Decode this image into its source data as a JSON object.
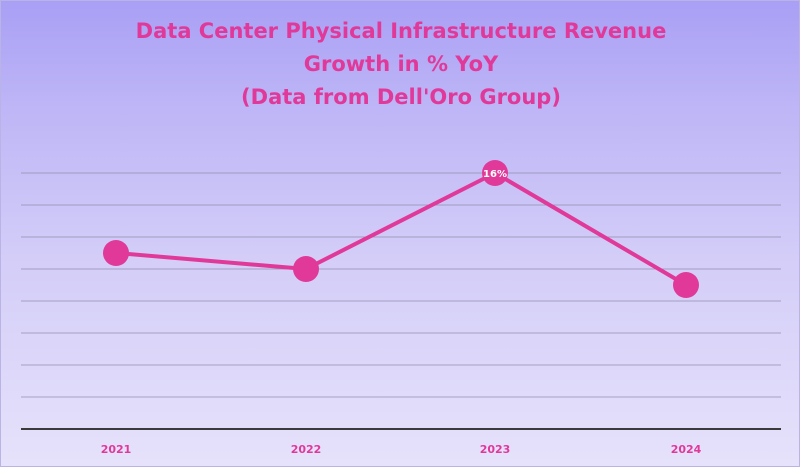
{
  "chart_data": {
    "type": "line",
    "title_lines": [
      "Data Center Physical Infrastructure Revenue",
      "Growth in % YoY",
      "(Data from Dell'Oro Group)"
    ],
    "categories": [
      "2021",
      "2022",
      "2023",
      "2024"
    ],
    "series": [
      {
        "name": "Revenue Growth % YoY",
        "values": [
          11,
          10,
          16,
          9
        ],
        "data_labels": [
          "",
          "",
          "16%",
          ""
        ]
      }
    ],
    "ylim": [
      0,
      16
    ],
    "gridlines": [
      2,
      4,
      6,
      8,
      10,
      12,
      14,
      16
    ],
    "grid": true,
    "legend": "none",
    "xlabel": "",
    "ylabel": ""
  },
  "colors": {
    "series": "#e0399a",
    "text": "#e0399a",
    "axis": "#3a3a3a",
    "grid": "#8f8aa8"
  }
}
